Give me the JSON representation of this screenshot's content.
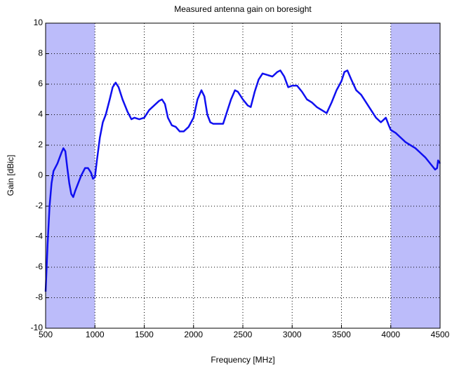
{
  "chart_data": {
    "type": "line",
    "title": "Measured antenna gain on boresight",
    "x_label": "Frequency [MHz]",
    "y_label": "Gain [dBic]",
    "x": [
      500,
      520,
      540,
      560,
      580,
      620,
      660,
      680,
      700,
      720,
      740,
      760,
      780,
      800,
      830,
      860,
      900,
      930,
      960,
      980,
      1000,
      1020,
      1050,
      1080,
      1110,
      1150,
      1180,
      1210,
      1240,
      1280,
      1330,
      1370,
      1400,
      1450,
      1500,
      1550,
      1600,
      1650,
      1680,
      1710,
      1740,
      1780,
      1820,
      1860,
      1900,
      1950,
      2000,
      2040,
      2080,
      2110,
      2140,
      2170,
      2200,
      2250,
      2300,
      2340,
      2380,
      2420,
      2450,
      2500,
      2550,
      2580,
      2620,
      2660,
      2700,
      2750,
      2800,
      2850,
      2880,
      2920,
      2960,
      3000,
      3050,
      3100,
      3150,
      3200,
      3250,
      3300,
      3350,
      3400,
      3450,
      3500,
      3530,
      3560,
      3600,
      3650,
      3700,
      3750,
      3800,
      3850,
      3900,
      3950,
      3980,
      4000,
      4050,
      4100,
      4150,
      4200,
      4250,
      4300,
      4350,
      4400,
      4450,
      4470,
      4480,
      4500
    ],
    "values": [
      -7.6,
      -4.5,
      -2,
      -0.5,
      0.3,
      0.8,
      1.5,
      1.8,
      1.6,
      0.5,
      -0.5,
      -1.2,
      -1.4,
      -1.0,
      -0.5,
      0.0,
      0.5,
      0.5,
      0.2,
      -0.2,
      -0.1,
      1.0,
      2.5,
      3.5,
      4.0,
      5.0,
      5.8,
      6.1,
      5.8,
      5.0,
      4.2,
      3.7,
      3.8,
      3.7,
      3.8,
      4.3,
      4.6,
      4.9,
      5.0,
      4.7,
      3.8,
      3.3,
      3.2,
      2.9,
      2.9,
      3.2,
      3.8,
      5.0,
      5.6,
      5.2,
      4.0,
      3.5,
      3.4,
      3.4,
      3.4,
      4.2,
      5.0,
      5.6,
      5.5,
      5.0,
      4.6,
      4.5,
      5.5,
      6.3,
      6.7,
      6.6,
      6.5,
      6.8,
      6.9,
      6.5,
      5.8,
      5.9,
      5.9,
      5.5,
      5.0,
      4.8,
      4.5,
      4.3,
      4.1,
      4.8,
      5.6,
      6.2,
      6.8,
      6.9,
      6.3,
      5.6,
      5.3,
      4.8,
      4.3,
      3.8,
      3.5,
      3.8,
      3.3,
      3.0,
      2.8,
      2.5,
      2.2,
      2.0,
      1.8,
      1.5,
      1.2,
      0.8,
      0.4,
      0.5,
      1.0,
      0.8
    ],
    "color": "#1010f0",
    "shaded_regions": [
      [
        500,
        1000
      ],
      [
        4000,
        4500
      ]
    ],
    "shade_color": "#bcbcfa",
    "xlim": [
      500,
      4500
    ],
    "xticks": [
      500,
      1000,
      1500,
      2000,
      2500,
      3000,
      3500,
      4000,
      4500
    ],
    "ylim": [
      -10,
      10
    ],
    "yticks": [
      -10,
      -8,
      -6,
      -4,
      -2,
      0,
      2,
      4,
      6,
      8,
      10
    ],
    "grid": true
  }
}
